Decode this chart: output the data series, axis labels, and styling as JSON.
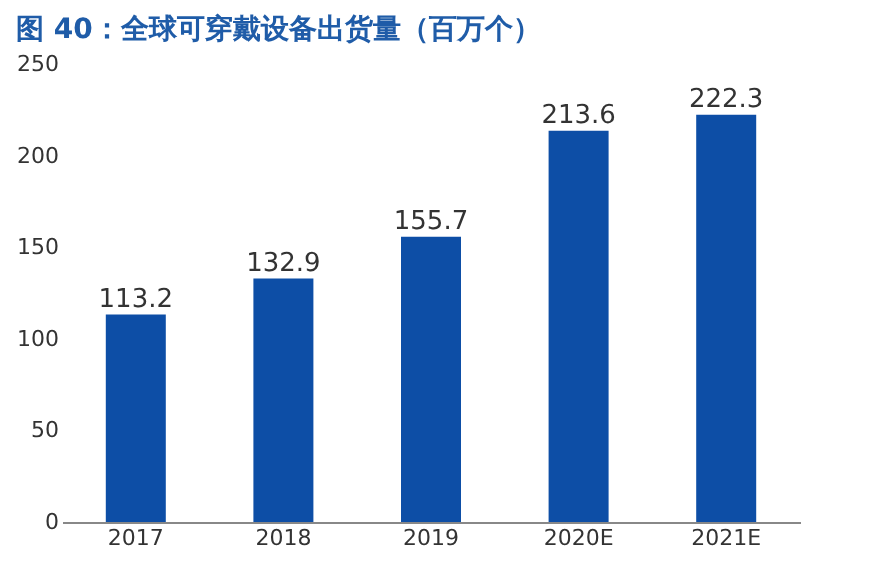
{
  "chart_data": {
    "type": "bar",
    "title": "图 40：全球可穿戴设备出货量（百万个）",
    "categories": [
      "2017",
      "2018",
      "2019",
      "2020E",
      "2021E"
    ],
    "values": [
      113.2,
      132.9,
      155.7,
      213.6,
      222.3
    ],
    "color": "#0d4ea6",
    "ylim": [
      0,
      250
    ],
    "yticks": [
      0,
      50,
      100,
      150,
      200,
      250
    ],
    "data_labels": true,
    "grid": false
  }
}
